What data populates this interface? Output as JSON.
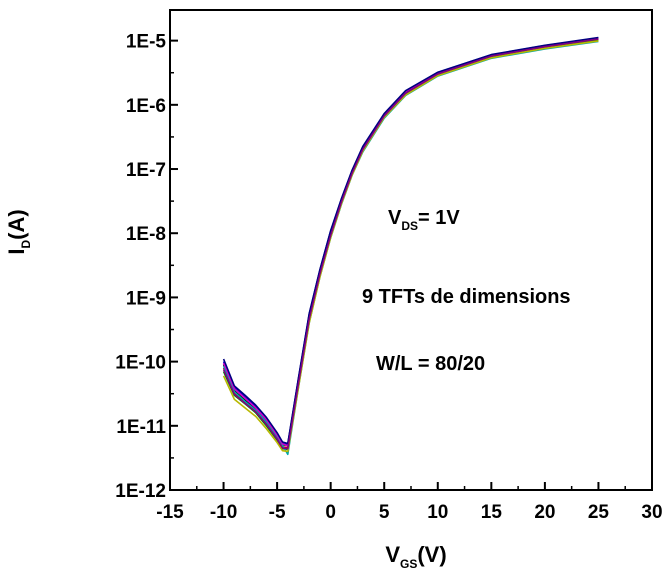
{
  "chart_data": {
    "type": "line",
    "title": "",
    "xlabel": {
      "main": "V",
      "sub": "GS",
      "suffix": "(V)"
    },
    "ylabel": {
      "main": "I",
      "sub": "D",
      "suffix": "(A)"
    },
    "xlim": [
      -15,
      30
    ],
    "ylim": [
      1e-12,
      3e-05
    ],
    "yscale": "log",
    "x_ticks": [
      -15,
      -10,
      -5,
      0,
      5,
      10,
      15,
      20,
      25,
      30
    ],
    "x_tick_labels": [
      "-15",
      "-10",
      "-5",
      "0",
      "5",
      "10",
      "15",
      "20",
      "25",
      "30"
    ],
    "y_ticks": [
      1e-12,
      1e-11,
      1e-10,
      1e-09,
      1e-08,
      1e-07,
      1e-06,
      1e-05
    ],
    "y_tick_labels": [
      "1E-12",
      "1E-11",
      "1E-10",
      "1E-9",
      "1E-8",
      "1E-7",
      "1E-6",
      "1E-5"
    ],
    "grid": false,
    "legend": "none",
    "annotations": {
      "vds": {
        "main": "V",
        "sub": "DS",
        "suffix": "= 1V"
      },
      "line2": "9 TFTs de dimensions",
      "line3": "W/L = 80/20"
    },
    "series": [
      {
        "color": "#000000",
        "x": [
          -10,
          -9,
          -8,
          -7,
          -6,
          -5,
          -4.5,
          -4,
          -3,
          -2,
          -1,
          0,
          1,
          2,
          3,
          5,
          7,
          10,
          15,
          20,
          25
        ],
        "y": [
          9e-11,
          3.5e-11,
          2.5e-11,
          1.8e-11,
          1.2e-11,
          7e-12,
          5e-12,
          5e-12,
          5e-11,
          5e-10,
          2.5e-09,
          1e-08,
          3.2e-08,
          9e-08,
          2.1e-07,
          7e-07,
          1.6e-06,
          3.1e-06,
          5.9e-06,
          8.2e-06,
          1.08e-05
        ]
      },
      {
        "color": "#cc0000",
        "x": [
          -10,
          -9,
          -8,
          -7,
          -6,
          -5,
          -4.5,
          -4,
          -3,
          -2,
          -1,
          0,
          1,
          2,
          3,
          5,
          7,
          10,
          15,
          20,
          25
        ],
        "y": [
          8e-11,
          3.2e-11,
          2.3e-11,
          1.7e-11,
          1.1e-11,
          6.5e-12,
          4.7e-12,
          4.6e-12,
          4.5e-11,
          4.5e-10,
          2.3e-09,
          9e-09,
          3e-08,
          8.5e-08,
          2e-07,
          6.8e-07,
          1.5e-06,
          3e-06,
          5.7e-06,
          8e-06,
          1.05e-05
        ]
      },
      {
        "color": "#0000cc",
        "x": [
          -10,
          -9,
          -8,
          -7,
          -6,
          -5,
          -4.5,
          -4,
          -3,
          -2,
          -1,
          0,
          1,
          2,
          3,
          5,
          7,
          10,
          15,
          20,
          25
        ],
        "y": [
          1e-10,
          4e-11,
          2.8e-11,
          2e-11,
          1.3e-11,
          7.5e-12,
          5.5e-12,
          5.2e-12,
          5.5e-11,
          5.5e-10,
          2.7e-09,
          1.1e-08,
          3.4e-08,
          9.5e-08,
          2.2e-07,
          7.2e-07,
          1.65e-06,
          3.2e-06,
          6e-06,
          8.4e-06,
          1.1e-05
        ]
      },
      {
        "color": "#008a00",
        "x": [
          -10,
          -9,
          -8,
          -7,
          -6,
          -5,
          -4.5,
          -4,
          -3,
          -2,
          -1,
          0,
          1,
          2,
          3,
          5,
          7,
          10,
          15,
          20,
          25
        ],
        "y": [
          7e-11,
          3e-11,
          2.2e-11,
          1.6e-11,
          1e-11,
          6e-12,
          4.4e-12,
          4.3e-12,
          4.2e-11,
          4.2e-10,
          2.2e-09,
          8.8e-09,
          2.9e-08,
          8.2e-08,
          1.9e-07,
          6.5e-07,
          1.45e-06,
          2.9e-06,
          5.5e-06,
          7.7e-06,
          1e-05
        ]
      },
      {
        "color": "#00a8a8",
        "x": [
          -10,
          -9,
          -8,
          -7,
          -6,
          -5,
          -4.5,
          -4,
          -3,
          -2,
          -1,
          0,
          1,
          2,
          3,
          5,
          7,
          10,
          15,
          20,
          25
        ],
        "y": [
          8.5e-11,
          3.4e-11,
          2.4e-11,
          1.75e-11,
          1.15e-11,
          6.8e-12,
          5e-12,
          3.6e-12,
          4e-11,
          4e-10,
          2.1e-09,
          8.5e-09,
          2.8e-08,
          8e-08,
          1.85e-07,
          6.2e-07,
          1.4e-06,
          2.8e-06,
          5.3e-06,
          7.4e-06,
          9.7e-06
        ]
      },
      {
        "color": "#cc00cc",
        "x": [
          -10,
          -9,
          -8,
          -7,
          -6,
          -5,
          -4.5,
          -4,
          -3,
          -2,
          -1,
          0,
          1,
          2,
          3,
          5,
          7,
          10,
          15,
          20,
          25
        ],
        "y": [
          9.5e-11,
          3.8e-11,
          2.7e-11,
          1.9e-11,
          1.25e-11,
          7.2e-12,
          5.2e-12,
          4.9e-12,
          5.2e-11,
          5.2e-10,
          2.6e-09,
          1.05e-08,
          3.3e-08,
          9.2e-08,
          2.15e-07,
          7.1e-07,
          1.62e-06,
          3.15e-06,
          5.95e-06,
          8.3e-06,
          1.09e-05
        ]
      },
      {
        "color": "#b8b800",
        "x": [
          -10,
          -9,
          -8,
          -7,
          -6,
          -5,
          -4.5,
          -4,
          -3,
          -2,
          -1,
          0,
          1,
          2,
          3,
          5,
          7,
          10,
          15,
          20,
          25
        ],
        "y": [
          6e-11,
          2.6e-11,
          1.9e-11,
          1.4e-11,
          9e-12,
          5.5e-12,
          4.1e-12,
          4e-12,
          4e-11,
          4e-10,
          2.1e-09,
          8.6e-09,
          2.85e-08,
          8.1e-08,
          1.9e-07,
          6.4e-07,
          1.42e-06,
          2.85e-06,
          5.4e-06,
          7.6e-06,
          9.9e-06
        ]
      },
      {
        "color": "#000080",
        "x": [
          -10,
          -9,
          -8,
          -7,
          -6,
          -5,
          -4.5,
          -4,
          -3,
          -2,
          -1,
          0,
          1,
          2,
          3,
          5,
          7,
          10,
          15,
          20,
          25
        ],
        "y": [
          1.1e-10,
          4.2e-11,
          3e-11,
          2.1e-11,
          1.35e-11,
          7.8e-12,
          5.6e-12,
          5.3e-12,
          5.6e-11,
          5.6e-10,
          2.75e-09,
          1.1e-08,
          3.45e-08,
          9.6e-08,
          2.25e-07,
          7.3e-07,
          1.66e-06,
          3.22e-06,
          6.05e-06,
          8.45e-06,
          1.12e-05
        ]
      },
      {
        "color": "#800080",
        "x": [
          -10,
          -9,
          -8,
          -7,
          -6,
          -5,
          -4.5,
          -4,
          -3,
          -2,
          -1,
          0,
          1,
          2,
          3,
          5,
          7,
          10,
          15,
          20,
          25
        ],
        "y": [
          7.5e-11,
          3.1e-11,
          2.25e-11,
          1.65e-11,
          1.05e-11,
          6.2e-12,
          4.5e-12,
          4.4e-12,
          4.6e-11,
          4.6e-10,
          2.35e-09,
          9.3e-09,
          3.05e-08,
          8.6e-08,
          2.02e-07,
          6.7e-07,
          1.52e-06,
          3.02e-06,
          5.75e-06,
          8.05e-06,
          1.06e-05
        ]
      }
    ]
  }
}
